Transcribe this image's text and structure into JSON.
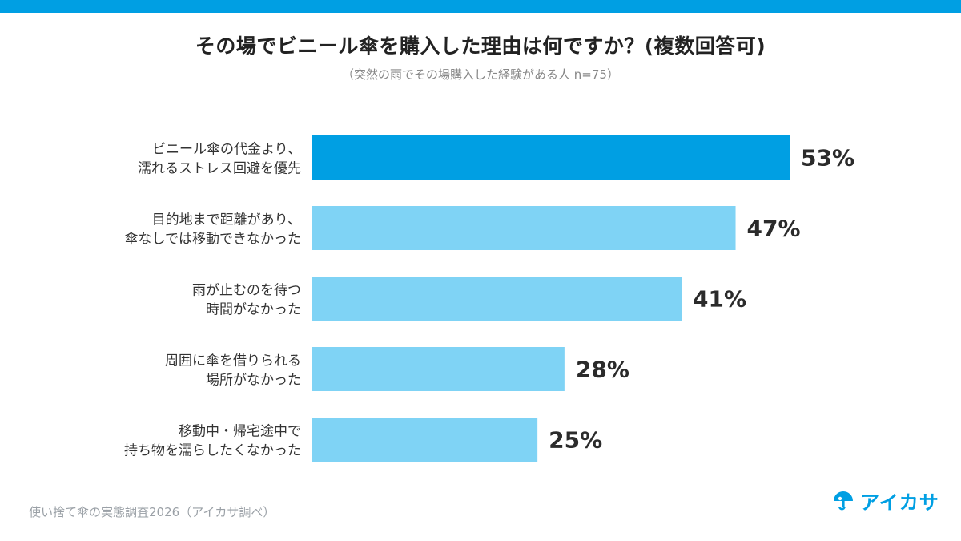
{
  "title": "その場でビニール傘を購入した理由は何ですか？(複数回答可)",
  "subtitle": "（突然の雨でその場購入した経験がある人 n=75）",
  "source": "使い捨て傘の実態調査2026（アイカサ調べ）",
  "logo": {
    "text": "アイカサ",
    "icon": "umbrella-logo-icon"
  },
  "colors": {
    "stripe": "#009fe3",
    "highlight": "#009fe3",
    "bar": "#7fd3f5"
  },
  "chart_data": {
    "type": "bar",
    "orientation": "horizontal",
    "categories": [
      [
        "ビニール傘の代金より、",
        "濡れるストレス回避を優先"
      ],
      [
        "目的地まで距離があり、",
        "傘なしでは移動できなかった"
      ],
      [
        "雨が止むのを待つ",
        "時間がなかった"
      ],
      [
        "周囲に傘を借りられる",
        "場所がなかった"
      ],
      [
        "移動中・帰宅途中で",
        "持ち物を濡らしたくなかった"
      ]
    ],
    "values": [
      53,
      47,
      41,
      28,
      25
    ],
    "data_labels": [
      "53%",
      "47%",
      "41%",
      "28%",
      "25%"
    ],
    "unit": "%",
    "xlim": [
      0,
      100
    ],
    "grid": false,
    "highlight_index": 0
  }
}
